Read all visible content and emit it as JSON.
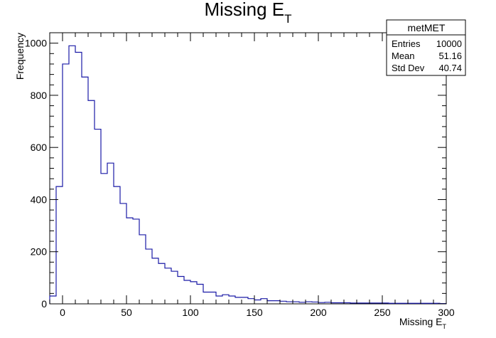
{
  "chart_data": {
    "type": "bar",
    "title": "Missing E",
    "title_sub": "T",
    "xlabel": "Missing E",
    "xlabel_sub": "T",
    "ylabel": "Frequency",
    "xlim": [
      -10,
      300
    ],
    "ylim": [
      0,
      1040
    ],
    "xticks": [
      0,
      50,
      100,
      150,
      200,
      250,
      300
    ],
    "yticks": [
      0,
      200,
      400,
      600,
      800,
      1000
    ],
    "bin_width": 5,
    "bins_start": -10,
    "values": [
      30,
      450,
      920,
      990,
      965,
      870,
      780,
      670,
      500,
      540,
      450,
      385,
      330,
      325,
      265,
      210,
      175,
      155,
      137,
      125,
      105,
      90,
      85,
      75,
      45,
      45,
      30,
      35,
      30,
      25,
      25,
      20,
      15,
      20,
      12,
      12,
      10,
      8,
      8,
      6,
      8,
      7,
      5,
      6,
      4,
      4,
      4,
      3,
      3,
      3,
      3,
      3,
      3,
      2,
      2,
      2,
      2,
      2,
      2,
      2,
      2,
      1
    ],
    "line_color": "#1a1aa6",
    "grid": false,
    "stats": {
      "name": "metMET",
      "rows": [
        {
          "label": "Entries",
          "value": "10000"
        },
        {
          "label": "Mean",
          "value": "51.16"
        },
        {
          "label": "Std Dev",
          "value": "40.74"
        }
      ]
    }
  }
}
